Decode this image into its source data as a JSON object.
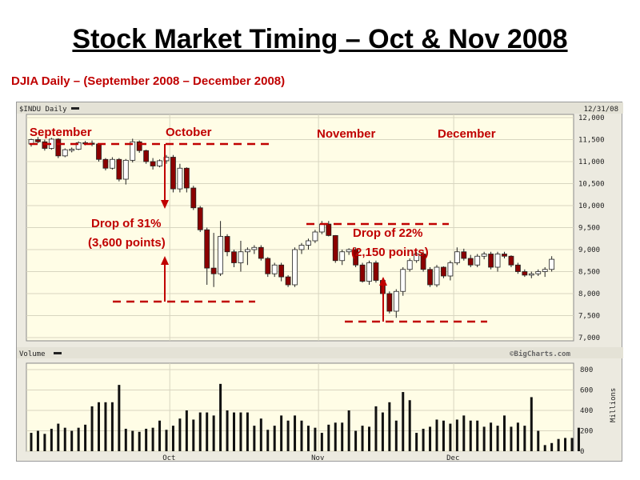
{
  "slide": {
    "title": "Stock Market Timing – Oct & Nov 2008",
    "subtitle": "DJIA Daily – (September 2008 – December 2008)"
  },
  "price_panel": {
    "symbol_label": "$INDU Daily",
    "date_label": "12/31/08",
    "watermark": "©BigCharts.com"
  },
  "volume_panel": {
    "label": "Volume",
    "unit_label": "Millions"
  },
  "month_labels": [
    "September",
    "October",
    "November",
    "December"
  ],
  "annotations": {
    "drop1_line1": "Drop of 31%",
    "drop1_line2": "(3,600 points)",
    "drop2_line1": "Drop of 22%",
    "drop2_line2": "(2,150 points)"
  },
  "colors": {
    "up_candle": "#ffffff",
    "down_candle": "#8b0000",
    "annotation": "#c00000",
    "plot_background": "#fffde6"
  },
  "chart_data": [
    {
      "type": "candlestick",
      "title": "$INDU Daily",
      "y_ticks": [
        "12,000",
        "11,500",
        "11,000",
        "10,500",
        "10,000",
        "9,500",
        "9,000",
        "8,500",
        "8,000",
        "7,500",
        "7,000"
      ],
      "ylim": [
        7000,
        12000
      ],
      "grid": true,
      "series": [
        {
          "values": [
            [
              11400,
              11520,
              11340,
              11500
            ],
            [
              11500,
              11560,
              11420,
              11450
            ],
            [
              11450,
              11500,
              11250,
              11300
            ],
            [
              11300,
              11540,
              11270,
              11510
            ],
            [
              11510,
              11530,
              11080,
              11130
            ],
            [
              11130,
              11300,
              11100,
              11270
            ],
            [
              11270,
              11320,
              11210,
              11280
            ],
            [
              11280,
              11460,
              11260,
              11430
            ],
            [
              11430,
              11470,
              11370,
              11420
            ],
            [
              11420,
              11480,
              11350,
              11400
            ],
            [
              11400,
              11420,
              11000,
              11050
            ],
            [
              11050,
              11080,
              10800,
              10850
            ],
            [
              10850,
              11100,
              10820,
              11050
            ],
            [
              11050,
              11080,
              10550,
              10600
            ],
            [
              10600,
              11060,
              10480,
              11030
            ],
            [
              11030,
              11520,
              10980,
              11450
            ],
            [
              11450,
              11480,
              11200,
              11250
            ],
            [
              11250,
              11270,
              10950,
              11000
            ],
            [
              11000,
              11080,
              10820,
              10900
            ],
            [
              10900,
              11050,
              10870,
              11020
            ],
            [
              11020,
              11150,
              10950,
              11100
            ],
            [
              11100,
              11150,
              10300,
              10380
            ],
            [
              10380,
              10950,
              10300,
              10850
            ],
            [
              10850,
              10870,
              10300,
              10400
            ],
            [
              10400,
              10450,
              9900,
              9950
            ],
            [
              9950,
              9990,
              9400,
              9450
            ],
            [
              9450,
              9500,
              8200,
              8580
            ],
            [
              8580,
              9380,
              8150,
              8450
            ],
            [
              8450,
              9650,
              8400,
              9300
            ],
            [
              9300,
              9350,
              8850,
              8950
            ],
            [
              8950,
              9000,
              8600,
              8700
            ],
            [
              8700,
              9200,
              8500,
              8950
            ],
            [
              8950,
              9050,
              8650,
              9000
            ],
            [
              9000,
              9100,
              8900,
              9050
            ],
            [
              9050,
              9100,
              8750,
              8800
            ],
            [
              8800,
              8830,
              8380,
              8450
            ],
            [
              8450,
              8700,
              8380,
              8650
            ],
            [
              8650,
              8700,
              8280,
              8380
            ],
            [
              8380,
              8420,
              8150,
              8200
            ],
            [
              8200,
              9050,
              8150,
              9000
            ],
            [
              9000,
              9150,
              8900,
              9100
            ],
            [
              9100,
              9250,
              9000,
              9200
            ],
            [
              9200,
              9450,
              9150,
              9400
            ],
            [
              9400,
              9650,
              9350,
              9580
            ],
            [
              9580,
              9650,
              9300,
              9320
            ],
            [
              9320,
              9330,
              8700,
              8750
            ],
            [
              8750,
              9000,
              8650,
              8950
            ],
            [
              8950,
              9030,
              8880,
              9000
            ],
            [
              9000,
              9050,
              8600,
              8650
            ],
            [
              8650,
              8700,
              8250,
              8280
            ],
            [
              8280,
              8750,
              8200,
              8700
            ],
            [
              8700,
              8750,
              8250,
              8300
            ],
            [
              8300,
              8350,
              7950,
              8000
            ],
            [
              8000,
              8050,
              7550,
              7600
            ],
            [
              7600,
              8100,
              7450,
              8050
            ],
            [
              8050,
              8600,
              7950,
              8550
            ],
            [
              8550,
              8800,
              8500,
              8750
            ],
            [
              8750,
              8950,
              8700,
              8900
            ],
            [
              8900,
              8950,
              8500,
              8550
            ],
            [
              8550,
              8600,
              8150,
              8200
            ],
            [
              8200,
              8650,
              8150,
              8600
            ],
            [
              8600,
              8620,
              8350,
              8400
            ],
            [
              8400,
              8750,
              8300,
              8700
            ],
            [
              8700,
              9050,
              8650,
              8950
            ],
            [
              8950,
              9020,
              8750,
              8800
            ],
            [
              8800,
              8880,
              8600,
              8650
            ],
            [
              8650,
              8900,
              8600,
              8850
            ],
            [
              8850,
              8950,
              8780,
              8900
            ],
            [
              8900,
              8950,
              8550,
              8600
            ],
            [
              8600,
              8950,
              8500,
              8900
            ],
            [
              8900,
              8950,
              8800,
              8850
            ],
            [
              8850,
              8870,
              8600,
              8650
            ],
            [
              8650,
              8700,
              8450,
              8500
            ],
            [
              8500,
              8550,
              8380,
              8420
            ],
            [
              8420,
              8500,
              8350,
              8450
            ],
            [
              8450,
              8550,
              8400,
              8500
            ],
            [
              8500,
              8600,
              8380,
              8550
            ],
            [
              8550,
              8850,
              8500,
              8780
            ]
          ]
        }
      ]
    },
    {
      "type": "bar",
      "title": "Volume",
      "y_ticks": [
        "800",
        "600",
        "400",
        "200",
        "0"
      ],
      "ylim": [
        0,
        800
      ],
      "ylabel": "Millions",
      "x_tick_labels": [
        "Oct",
        "Nov",
        "Dec"
      ],
      "series": [
        {
          "values": [
            180,
            200,
            170,
            220,
            270,
            230,
            200,
            230,
            260,
            440,
            480,
            480,
            480,
            650,
            220,
            200,
            190,
            220,
            230,
            300,
            210,
            250,
            320,
            400,
            310,
            380,
            380,
            350,
            660,
            400,
            380,
            380,
            380,
            250,
            320,
            210,
            250,
            350,
            300,
            350,
            300,
            250,
            230,
            180,
            260,
            280,
            280,
            400,
            200,
            250,
            240,
            440,
            380,
            480,
            300,
            580,
            500,
            180,
            220,
            240,
            310,
            300,
            270,
            310,
            350,
            300,
            300,
            240,
            280,
            250,
            350,
            240,
            280,
            250,
            530,
            200,
            60,
            80,
            120,
            130,
            130,
            230
          ]
        }
      ]
    }
  ]
}
